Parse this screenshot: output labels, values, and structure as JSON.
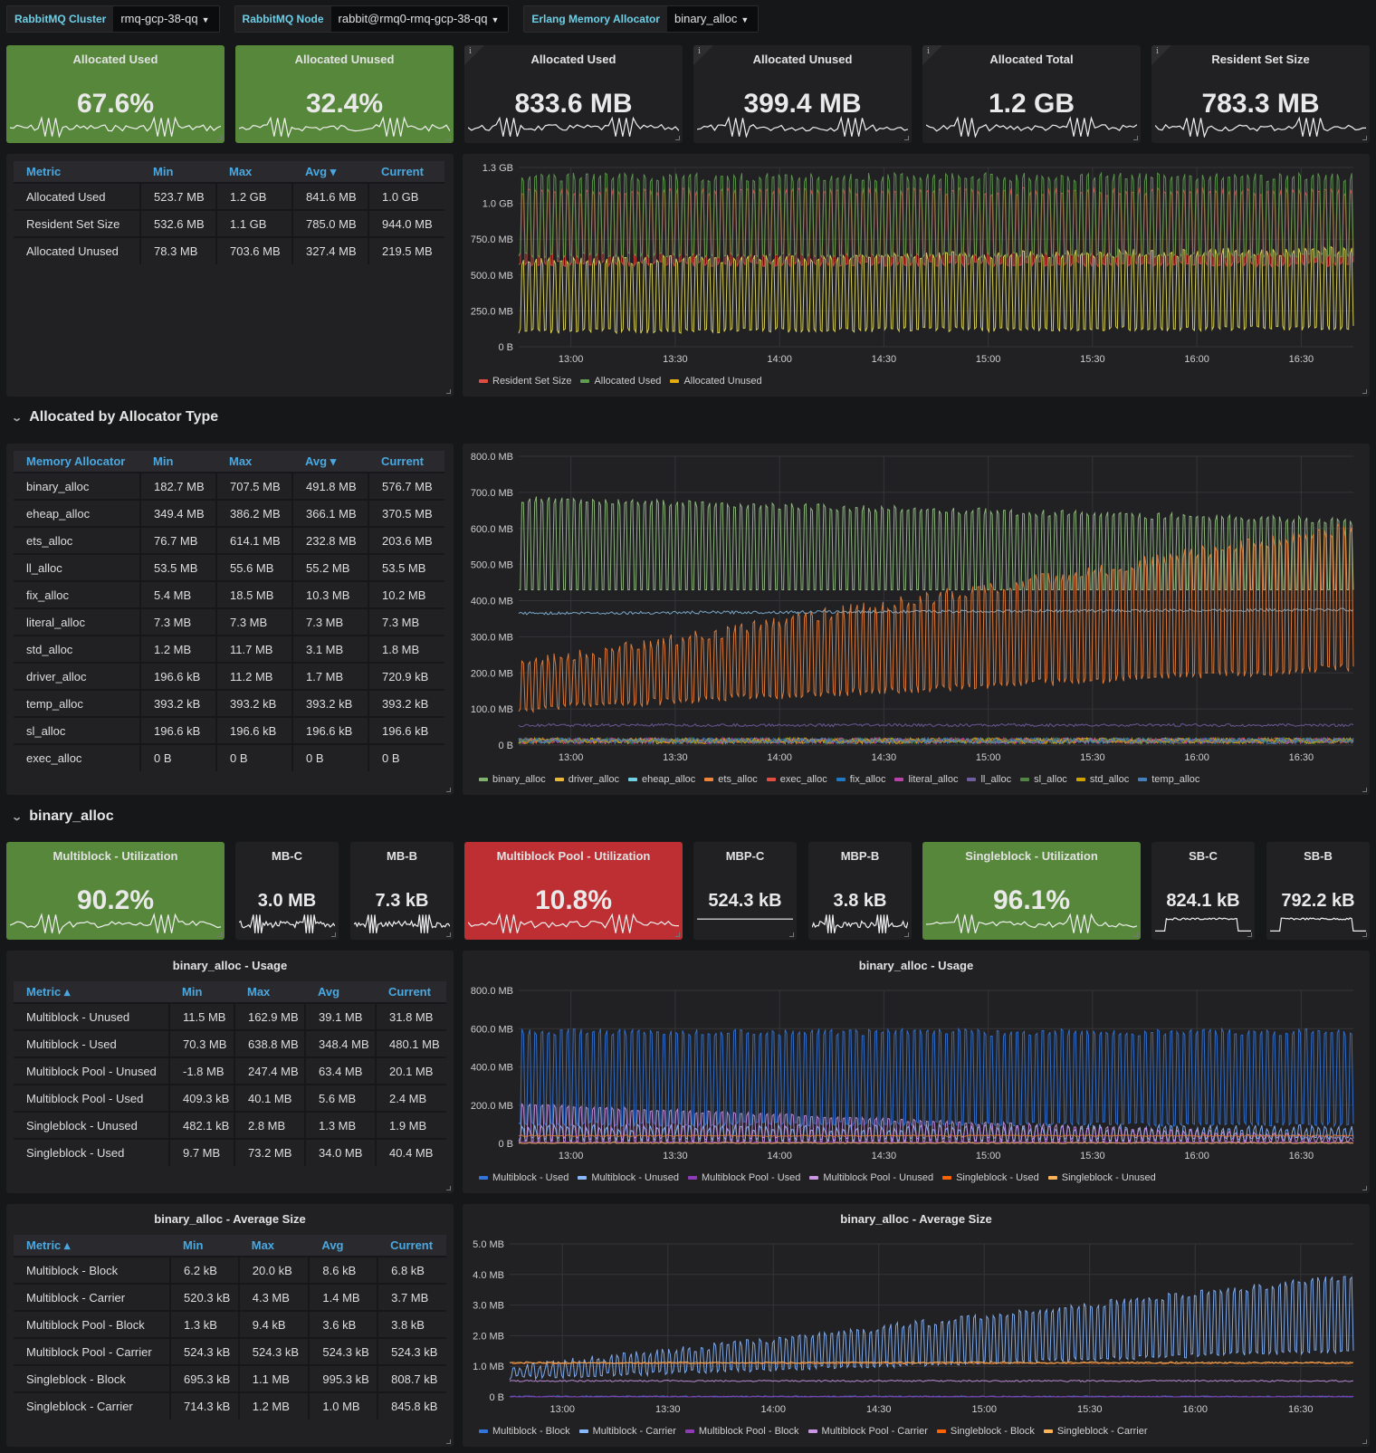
{
  "variables": [
    {
      "label": "RabbitMQ Cluster",
      "value": "rmq-gcp-38-qq"
    },
    {
      "label": "RabbitMQ Node",
      "value": "rabbit@rmq0-rmq-gcp-38-qq"
    },
    {
      "label": "Erlang Memory Allocator",
      "value": "binary_alloc"
    }
  ],
  "top_stats": [
    {
      "title": "Allocated Used",
      "value": "67.6%",
      "color": "green"
    },
    {
      "title": "Allocated Unused",
      "value": "32.4%",
      "color": "green"
    },
    {
      "title": "Allocated Used",
      "value": "833.6 MB",
      "color": "dark",
      "info": true
    },
    {
      "title": "Allocated Unused",
      "value": "399.4 MB",
      "color": "dark",
      "info": true
    },
    {
      "title": "Allocated Total",
      "value": "1.2 GB",
      "color": "dark",
      "info": true
    },
    {
      "title": "Resident Set Size",
      "value": "783.3 MB",
      "color": "dark",
      "info": true
    }
  ],
  "overview_table": {
    "columns": [
      "Metric",
      "Min",
      "Max",
      "Avg ▾",
      "Current"
    ],
    "rows": [
      [
        "Allocated Used",
        "523.7 MB",
        "1.2 GB",
        "841.6 MB",
        "1.0 GB"
      ],
      [
        "Resident Set Size",
        "532.6 MB",
        "1.1 GB",
        "785.0 MB",
        "944.0 MB"
      ],
      [
        "Allocated Unused",
        "78.3 MB",
        "703.6 MB",
        "327.4 MB",
        "219.5 MB"
      ]
    ]
  },
  "rows": {
    "allocated_by_type": "Allocated by Allocator Type",
    "binary_alloc": "binary_alloc"
  },
  "allocator_table": {
    "columns": [
      "Memory Allocator",
      "Min",
      "Max",
      "Avg ▾",
      "Current"
    ],
    "rows": [
      [
        "binary_alloc",
        "182.7 MB",
        "707.5 MB",
        "491.8 MB",
        "576.7 MB"
      ],
      [
        "eheap_alloc",
        "349.4 MB",
        "386.2 MB",
        "366.1 MB",
        "370.5 MB"
      ],
      [
        "ets_alloc",
        "76.7 MB",
        "614.1 MB",
        "232.8 MB",
        "203.6 MB"
      ],
      [
        "ll_alloc",
        "53.5 MB",
        "55.6 MB",
        "55.2 MB",
        "53.5 MB"
      ],
      [
        "fix_alloc",
        "5.4 MB",
        "18.5 MB",
        "10.3 MB",
        "10.2 MB"
      ],
      [
        "literal_alloc",
        "7.3 MB",
        "7.3 MB",
        "7.3 MB",
        "7.3 MB"
      ],
      [
        "std_alloc",
        "1.2 MB",
        "11.7 MB",
        "3.1 MB",
        "1.8 MB"
      ],
      [
        "driver_alloc",
        "196.6 kB",
        "11.2 MB",
        "1.7 MB",
        "720.9 kB"
      ],
      [
        "temp_alloc",
        "393.2 kB",
        "393.2 kB",
        "393.2 kB",
        "393.2 kB"
      ],
      [
        "sl_alloc",
        "196.6 kB",
        "196.6 kB",
        "196.6 kB",
        "196.6 kB"
      ],
      [
        "exec_alloc",
        "0 B",
        "0 B",
        "0 B",
        "0 B"
      ]
    ]
  },
  "binary_stats": [
    {
      "title": "Multiblock - Utilization",
      "value": "90.2%",
      "color": "green"
    },
    {
      "title": "MB-C",
      "value": "3.0 MB",
      "color": "dark"
    },
    {
      "title": "MB-B",
      "value": "7.3 kB",
      "color": "dark"
    },
    {
      "title": "Multiblock Pool - Utilization",
      "value": "10.8%",
      "color": "red"
    },
    {
      "title": "MBP-C",
      "value": "524.3 kB",
      "color": "dark"
    },
    {
      "title": "MBP-B",
      "value": "3.8 kB",
      "color": "dark"
    },
    {
      "title": "Singleblock - Utilization",
      "value": "96.1%",
      "color": "green"
    },
    {
      "title": "SB-C",
      "value": "824.1 kB",
      "color": "dark"
    },
    {
      "title": "SB-B",
      "value": "792.2 kB",
      "color": "dark"
    }
  ],
  "usage_table": {
    "title": "binary_alloc - Usage",
    "columns": [
      "Metric ▴",
      "Min",
      "Max",
      "Avg",
      "Current"
    ],
    "rows": [
      [
        "Multiblock - Unused",
        "11.5 MB",
        "162.9 MB",
        "39.1 MB",
        "31.8 MB"
      ],
      [
        "Multiblock - Used",
        "70.3 MB",
        "638.8 MB",
        "348.4 MB",
        "480.1 MB"
      ],
      [
        "Multiblock Pool - Unused",
        "-1.8 MB",
        "247.4 MB",
        "63.4 MB",
        "20.1 MB"
      ],
      [
        "Multiblock Pool - Used",
        "409.3 kB",
        "40.1 MB",
        "5.6 MB",
        "2.4 MB"
      ],
      [
        "Singleblock - Unused",
        "482.1 kB",
        "2.8 MB",
        "1.3 MB",
        "1.9 MB"
      ],
      [
        "Singleblock - Used",
        "9.7 MB",
        "73.2 MB",
        "34.0 MB",
        "40.4 MB"
      ]
    ]
  },
  "avgsize_table": {
    "title": "binary_alloc - Average Size",
    "columns": [
      "Metric ▴",
      "Min",
      "Max",
      "Avg",
      "Current"
    ],
    "rows": [
      [
        "Multiblock - Block",
        "6.2 kB",
        "20.0 kB",
        "8.6 kB",
        "6.8 kB"
      ],
      [
        "Multiblock - Carrier",
        "520.3 kB",
        "4.3 MB",
        "1.4 MB",
        "3.7 MB"
      ],
      [
        "Multiblock Pool - Block",
        "1.3 kB",
        "9.4 kB",
        "3.6 kB",
        "3.8 kB"
      ],
      [
        "Multiblock Pool - Carrier",
        "524.3 kB",
        "524.3 kB",
        "524.3 kB",
        "524.3 kB"
      ],
      [
        "Singleblock - Block",
        "695.3 kB",
        "1.1 MB",
        "995.3 kB",
        "808.7 kB"
      ],
      [
        "Singleblock - Carrier",
        "714.3 kB",
        "1.2 MB",
        "1.0 MB",
        "845.8 kB"
      ]
    ]
  },
  "chart_data": [
    {
      "id": "memory-overview",
      "type": "line",
      "title": "",
      "x_ticks": [
        "13:00",
        "13:30",
        "14:00",
        "14:30",
        "15:00",
        "15:30",
        "16:00",
        "16:30"
      ],
      "x_range": [
        "12:45",
        "16:45"
      ],
      "y_ticks": [
        "0 B",
        "250.0 MB",
        "500.0 MB",
        "750.0 MB",
        "1.0 GB",
        "1.3 GB"
      ],
      "y_tick_values_mb": [
        0,
        250,
        500,
        750,
        1000,
        1250
      ],
      "ylim_mb": [
        0,
        1250
      ],
      "legend_position": "bottom-left",
      "series": [
        {
          "name": "Resident Set Size",
          "color": "#e24d42",
          "low_mb": 560,
          "high_mb": 1050,
          "trend": 0
        },
        {
          "name": "Allocated Used",
          "color": "#629e51",
          "low_mb": 620,
          "high_mb": 1150,
          "trend": 0
        },
        {
          "name": "Allocated Unused",
          "color": "#e5ac0e",
          "color_line": "#e8e05a",
          "low_mb": 90,
          "high_mb": 560,
          "trend": 80
        }
      ]
    },
    {
      "id": "allocator-type",
      "type": "line",
      "x_ticks": [
        "13:00",
        "13:30",
        "14:00",
        "14:30",
        "15:00",
        "15:30",
        "16:00",
        "16:30"
      ],
      "y_ticks": [
        "0 B",
        "100.0 MB",
        "200.0 MB",
        "300.0 MB",
        "400.0 MB",
        "500.0 MB",
        "600.0 MB",
        "700.0 MB",
        "800.0 MB"
      ],
      "y_tick_values_mb": [
        0,
        100,
        200,
        300,
        400,
        500,
        600,
        700,
        800
      ],
      "ylim_mb": [
        0,
        800
      ],
      "legend_position": "bottom-left",
      "series": [
        {
          "name": "binary_alloc",
          "color": "#7eb26d",
          "color_line": "#9ac48a",
          "low_mb": 430,
          "high_mb": 670,
          "trend": -60
        },
        {
          "name": "driver_alloc",
          "color": "#eab839"
        },
        {
          "name": "eheap_alloc",
          "color": "#6ed0e0",
          "color_line": "#82b5d8",
          "flat_mb": 365,
          "trend": 10
        },
        {
          "name": "ets_alloc",
          "color": "#ef843c",
          "low_mb": 90,
          "high_mb": 200,
          "trend": 380
        },
        {
          "name": "exec_alloc",
          "color": "#e24d42"
        },
        {
          "name": "fix_alloc",
          "color": "#1f78c1"
        },
        {
          "name": "literal_alloc",
          "color": "#ba43a9"
        },
        {
          "name": "ll_alloc",
          "color": "#705da0",
          "flat_mb": 55
        },
        {
          "name": "sl_alloc",
          "color": "#508642"
        },
        {
          "name": "std_alloc",
          "color": "#cca300"
        },
        {
          "name": "temp_alloc",
          "color": "#447ebc"
        }
      ]
    },
    {
      "id": "binary-usage",
      "type": "line",
      "title": "binary_alloc - Usage",
      "x_ticks": [
        "13:00",
        "13:30",
        "14:00",
        "14:30",
        "15:00",
        "15:30",
        "16:00",
        "16:30"
      ],
      "y_ticks": [
        "0 B",
        "200.0 MB",
        "400.0 MB",
        "600.0 MB",
        "800.0 MB"
      ],
      "y_tick_values_mb": [
        0,
        200,
        400,
        600,
        800
      ],
      "ylim_mb": [
        0,
        800
      ],
      "legend_position": "bottom-left",
      "series": [
        {
          "name": "Multiblock - Used",
          "color": "#3274d9",
          "low_mb": 90,
          "high_mb": 560,
          "trend": 0
        },
        {
          "name": "Multiblock - Unused",
          "color": "#8ab8ff",
          "low_mb": 10,
          "high_mb": 60,
          "trend": 0
        },
        {
          "name": "Multiblock Pool - Used",
          "color": "#8f3bb8",
          "flat_mb": 5
        },
        {
          "name": "Multiblock Pool - Unused",
          "color": "#ca95e5",
          "low_mb": 10,
          "high_mb": 190,
          "trend": -170
        },
        {
          "name": "Singleblock - Used",
          "color": "#fa6400",
          "color_line": "#e0752d",
          "flat_mb": 40
        },
        {
          "name": "Singleblock - Unused",
          "color": "#ffb357",
          "flat_mb": 2
        }
      ]
    },
    {
      "id": "binary-avg-size",
      "type": "line",
      "title": "binary_alloc - Average Size",
      "x_ticks": [
        "13:00",
        "13:30",
        "14:00",
        "14:30",
        "15:00",
        "15:30",
        "16:00",
        "16:30"
      ],
      "y_ticks": [
        "0 B",
        "1.0 MB",
        "2.0 MB",
        "3.0 MB",
        "4.0 MB",
        "5.0 MB"
      ],
      "y_tick_values_mb": [
        0,
        1,
        2,
        3,
        4,
        5
      ],
      "ylim_mb": [
        0,
        5
      ],
      "legend_position": "bottom-left",
      "series": [
        {
          "name": "Multiblock - Block",
          "color": "#3274d9",
          "flat_mb": 0.01
        },
        {
          "name": "Multiblock - Carrier",
          "color": "#8ab8ff",
          "low_mb": 0.55,
          "high_mb": 0.8,
          "trend": 3.0
        },
        {
          "name": "Multiblock Pool - Block",
          "color": "#8f3bb8",
          "flat_mb": 0.004
        },
        {
          "name": "Multiblock Pool - Carrier",
          "color": "#ca95e5",
          "flat_mb": 0.52
        },
        {
          "name": "Singleblock - Block",
          "color": "#fa6400",
          "color_line": "#e0752d",
          "flat_mb": 1.1
        },
        {
          "name": "Singleblock - Carrier",
          "color": "#ffb357",
          "flat_mb": 1.12
        }
      ]
    }
  ]
}
